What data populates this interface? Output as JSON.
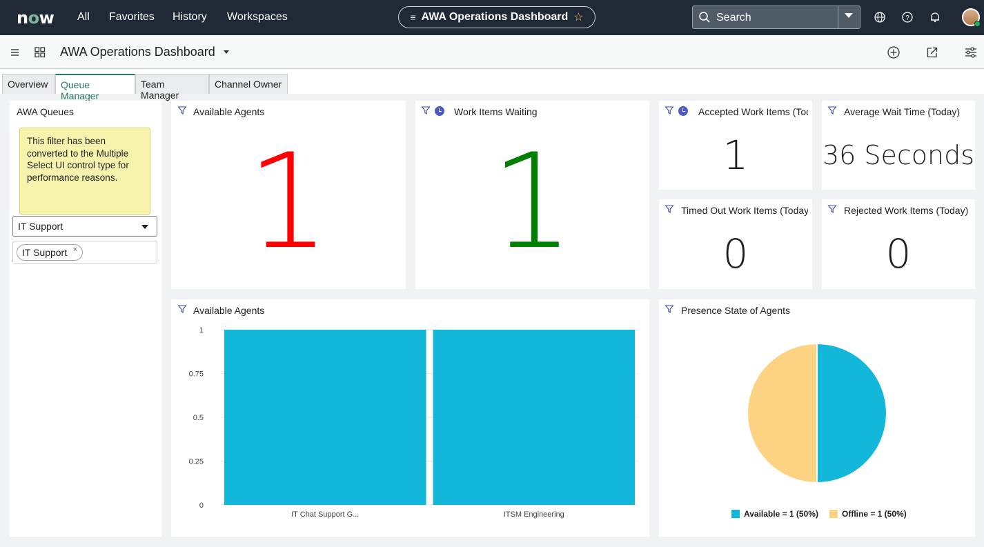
{
  "topnav": {
    "logo": "now",
    "links": [
      "All",
      "Favorites",
      "History",
      "Workspaces"
    ],
    "dashboard_pill": "AWA Operations Dashboard",
    "search_label": "Search"
  },
  "header": {
    "title": "AWA Operations Dashboard"
  },
  "tabs": [
    "Overview",
    "Queue Manager",
    "Team Manager",
    "Channel Owner"
  ],
  "active_tab": "Queue Manager",
  "filter_panel": {
    "title": "AWA Queues",
    "note": "This filter has been converted to the Multiple Select UI control type for performance reasons.",
    "select_value": "IT Support",
    "chip": "IT Support",
    "chip_remove": "×"
  },
  "widgets": {
    "available_agents": {
      "title": "Available Agents",
      "value": "1",
      "color": "#ff0000"
    },
    "work_items_waiting": {
      "title": "Work Items Waiting",
      "value": "1",
      "color": "#008000"
    },
    "accepted_work_items": {
      "title": "Accepted Work Items (Today)",
      "value": "1"
    },
    "average_wait_time": {
      "title": "Average Wait Time (Today)",
      "value": "36 Seconds"
    },
    "timed_out_work_items": {
      "title": "Timed Out Work Items (Today)",
      "value": "0"
    },
    "rejected_work_items": {
      "title": "Rejected Work Items (Today)",
      "value": "0"
    }
  },
  "bar_widget": {
    "title": "Available Agents"
  },
  "pie_widget": {
    "title": "Presence State of Agents"
  },
  "chart_data": [
    {
      "type": "bar",
      "title": "Available Agents",
      "categories": [
        "IT Chat Support G...",
        "ITSM Engineering"
      ],
      "values": [
        1,
        1
      ],
      "ylim": [
        0,
        1
      ],
      "yticks": [
        "0",
        "0.25",
        "0.5",
        "0.75",
        "1"
      ],
      "color": "#12b7d9",
      "grid": true
    },
    {
      "type": "pie",
      "title": "Presence State of Agents",
      "slices": [
        {
          "label": "Available = 1 (50%)",
          "value": 1,
          "color": "#12b7d9"
        },
        {
          "label": "Offline = 1 (50%)",
          "value": 1,
          "color": "#fcd383"
        }
      ],
      "legend": "bottom"
    }
  ]
}
